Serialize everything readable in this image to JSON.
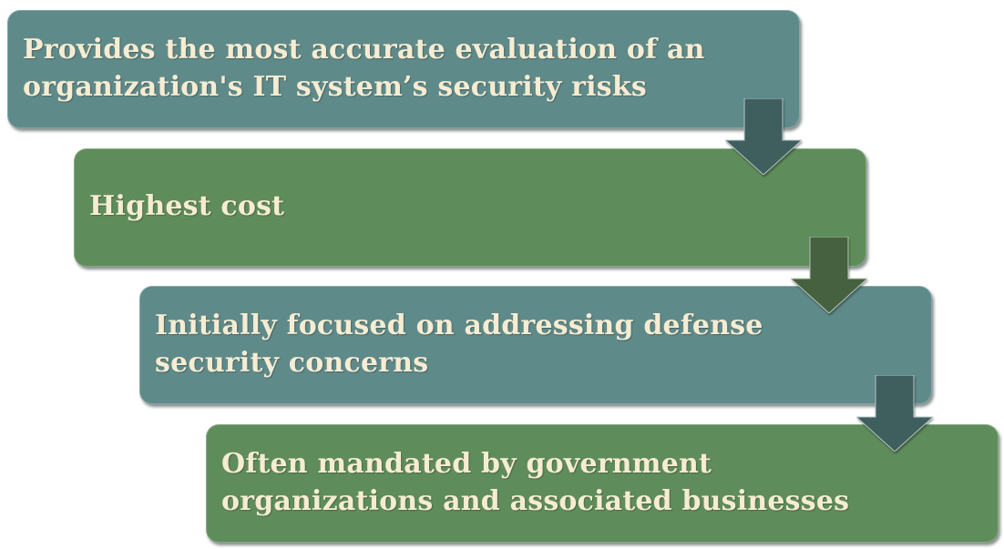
{
  "steps": [
    {
      "text_lines": [
        "Provides the most accurate evaluation of an",
        "organization's IT system’s security risks"
      ],
      "color": "#5f8a8a"
    },
    {
      "text_lines": [
        "Highest cost"
      ],
      "color": "#5f8c5b"
    },
    {
      "text_lines": [
        "Initially focused on addressing defense",
        "security concerns"
      ],
      "color": "#5f8a8a"
    },
    {
      "text_lines": [
        "Often mandated by government",
        "organizations and associated businesses"
      ],
      "color": "#5f8c5b"
    }
  ],
  "arrows": [
    {
      "icon": "down-arrow-icon",
      "color": "#3f5f5f"
    },
    {
      "icon": "down-arrow-icon",
      "color": "#45613f"
    },
    {
      "icon": "down-arrow-icon",
      "color": "#3f5f5f"
    }
  ],
  "text_color": "#f6ecd2"
}
